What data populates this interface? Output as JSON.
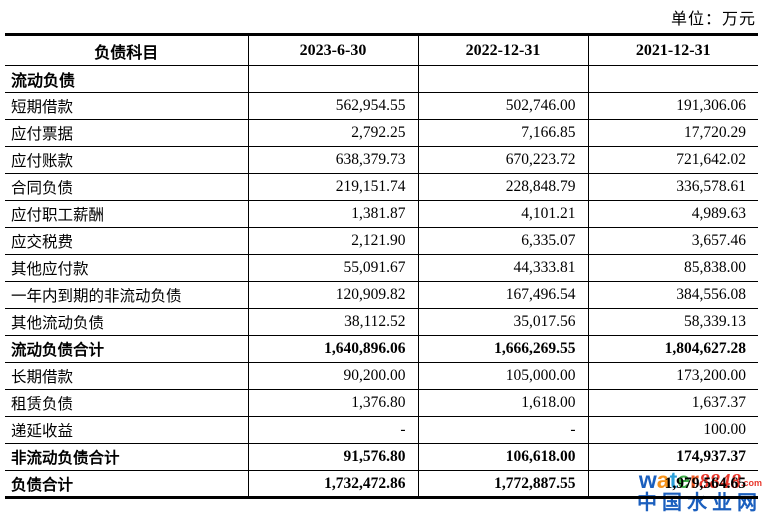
{
  "unit_label": "单位：万元",
  "table": {
    "columns": [
      "负债科目",
      "2023-6-30",
      "2022-12-31",
      "2021-12-31"
    ],
    "rows": [
      {
        "label": "流动负债",
        "values": [
          "",
          "",
          ""
        ],
        "style": "section"
      },
      {
        "label": "短期借款",
        "values": [
          "562,954.55",
          "502,746.00",
          "191,306.06"
        ],
        "style": "normal"
      },
      {
        "label": "应付票据",
        "values": [
          "2,792.25",
          "7,166.85",
          "17,720.29"
        ],
        "style": "normal"
      },
      {
        "label": "应付账款",
        "values": [
          "638,379.73",
          "670,223.72",
          "721,642.02"
        ],
        "style": "normal"
      },
      {
        "label": "合同负债",
        "values": [
          "219,151.74",
          "228,848.79",
          "336,578.61"
        ],
        "style": "normal"
      },
      {
        "label": "应付职工薪酬",
        "values": [
          "1,381.87",
          "4,101.21",
          "4,989.63"
        ],
        "style": "normal"
      },
      {
        "label": "应交税费",
        "values": [
          "2,121.90",
          "6,335.07",
          "3,657.46"
        ],
        "style": "normal"
      },
      {
        "label": "其他应付款",
        "values": [
          "55,091.67",
          "44,333.81",
          "85,838.00"
        ],
        "style": "normal"
      },
      {
        "label": "一年内到期的非流动负债",
        "values": [
          "120,909.82",
          "167,496.54",
          "384,556.08"
        ],
        "style": "normal"
      },
      {
        "label": "其他流动负债",
        "values": [
          "38,112.52",
          "35,017.56",
          "58,339.13"
        ],
        "style": "normal"
      },
      {
        "label": "流动负债合计",
        "values": [
          "1,640,896.06",
          "1,666,269.55",
          "1,804,627.28"
        ],
        "style": "total"
      },
      {
        "label": "长期借款",
        "values": [
          "90,200.00",
          "105,000.00",
          "173,200.00"
        ],
        "style": "normal"
      },
      {
        "label": "租赁负债",
        "values": [
          "1,376.80",
          "1,618.00",
          "1,637.37"
        ],
        "style": "normal"
      },
      {
        "label": "递延收益",
        "values": [
          "-",
          "-",
          "100.00"
        ],
        "style": "normal"
      },
      {
        "label": "非流动负债合计",
        "values": [
          "91,576.80",
          "106,618.00",
          "174,937.37"
        ],
        "style": "total"
      },
      {
        "label": "负债合计",
        "values": [
          "1,732,472.86",
          "1,772,887.55",
          "1,979,564.65"
        ],
        "style": "total"
      }
    ]
  },
  "watermark": {
    "brand_letters": [
      {
        "ch": "w",
        "color": "#1b5fbe"
      },
      {
        "ch": "a",
        "color": "#f7941d"
      },
      {
        "ch": "t",
        "color": "#2a9fd8"
      },
      {
        "ch": "e",
        "color": "#3fae49"
      },
      {
        "ch": "r",
        "color": "#f15a24"
      }
    ],
    "brand_number": "8848",
    "brand_suffix": ".com",
    "tagline": "中国水业网",
    "colors": {
      "number": "#e8372c",
      "suffix": "#e8372c",
      "tagline": "#1b5fbe"
    }
  }
}
